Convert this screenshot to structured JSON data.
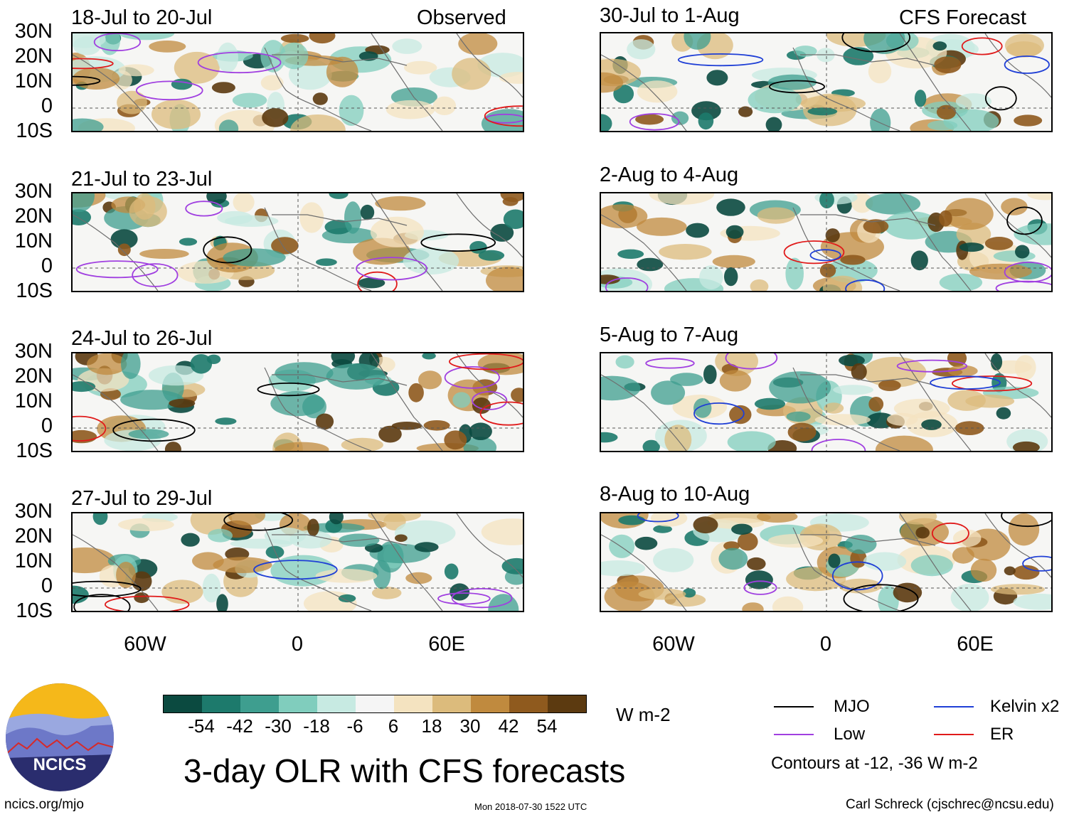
{
  "observed_label": "Observed",
  "forecast_label": "CFS Forecast",
  "panels_left": [
    {
      "title": "18-Jul to 20-Jul"
    },
    {
      "title": "21-Jul to 23-Jul"
    },
    {
      "title": "24-Jul to 26-Jul"
    },
    {
      "title": "27-Jul to 29-Jul"
    }
  ],
  "panels_right": [
    {
      "title": "30-Jul to 1-Aug"
    },
    {
      "title": "2-Aug to 4-Aug"
    },
    {
      "title": "5-Aug to 7-Aug"
    },
    {
      "title": "8-Aug to 10-Aug"
    }
  ],
  "lat_labels": [
    "30N",
    "20N",
    "10N",
    "0",
    "10S"
  ],
  "lon_labels": [
    "60W",
    "0",
    "60E"
  ],
  "colorbar": {
    "unit": "W m-2",
    "labels": [
      "-54",
      "-42",
      "-30",
      "-18",
      "-6",
      "6",
      "18",
      "30",
      "42",
      "54"
    ],
    "colors": [
      "#0b4a40",
      "#1d7a6c",
      "#3e9e8f",
      "#80cdbd",
      "#c7eae2",
      "#f5f5f5",
      "#f4e3c0",
      "#dcbb7c",
      "#c08a3e",
      "#8f5a1e",
      "#5c3a10"
    ]
  },
  "legend": {
    "items": [
      {
        "label": "MJO",
        "color": "#000000"
      },
      {
        "label": "Kelvin x2",
        "color": "#1f3fd6"
      },
      {
        "label": "Low",
        "color": "#a03fe0"
      },
      {
        "label": "ER",
        "color": "#e01a1a"
      }
    ],
    "note": "Contours at -12, -36 W m-2"
  },
  "main_title": "3-day OLR with CFS forecasts",
  "logo_text": "NCICS",
  "footer": {
    "url": "ncics.org/mjo",
    "timestamp": "Mon 2018-07-30 1522 UTC",
    "credit": "Carl Schreck (cjschrec@ncsu.edu)"
  }
}
